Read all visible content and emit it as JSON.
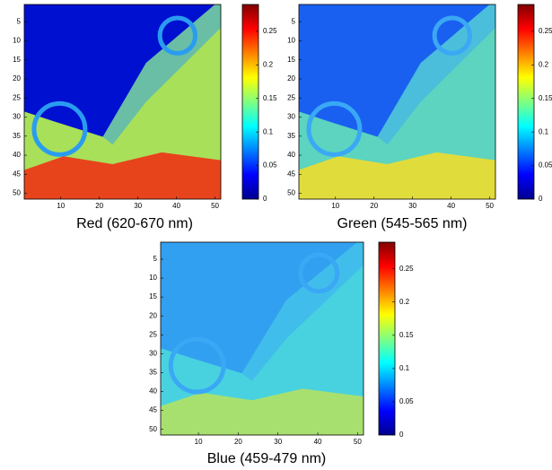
{
  "chart_data": [
    {
      "type": "image",
      "title": "Red (620-670 nm)",
      "colormap": "jet",
      "xlim": [
        0.5,
        51.5
      ],
      "ylim": [
        51.5,
        0.5
      ],
      "xticks": [
        10,
        20,
        30,
        40,
        50
      ],
      "yticks": [
        5,
        10,
        15,
        20,
        25,
        30,
        35,
        40,
        45,
        50
      ],
      "clim": [
        0,
        0.29
      ],
      "cticks": [
        0,
        0.05,
        0.1,
        0.15,
        0.2,
        0.25
      ]
    },
    {
      "type": "image",
      "title": "Green (545-565 nm)",
      "colormap": "jet",
      "xlim": [
        0.5,
        51.5
      ],
      "ylim": [
        51.5,
        0.5
      ],
      "xticks": [
        10,
        20,
        30,
        40,
        50
      ],
      "yticks": [
        5,
        10,
        15,
        20,
        25,
        30,
        35,
        40,
        45,
        50
      ],
      "clim": [
        0,
        0.29
      ],
      "cticks": [
        0,
        0.05,
        0.1,
        0.15,
        0.2,
        0.25
      ]
    },
    {
      "type": "image",
      "title": "Blue (459-479 nm)",
      "colormap": "jet",
      "xlim": [
        0.5,
        51.5
      ],
      "ylim": [
        51.5,
        0.5
      ],
      "xticks": [
        10,
        20,
        30,
        40,
        50
      ],
      "yticks": [
        5,
        10,
        15,
        20,
        25,
        30,
        35,
        40,
        45,
        50
      ],
      "clim": [
        0,
        0.29
      ],
      "cticks": [
        0,
        0.05,
        0.1,
        0.15,
        0.2,
        0.25
      ]
    }
  ]
}
